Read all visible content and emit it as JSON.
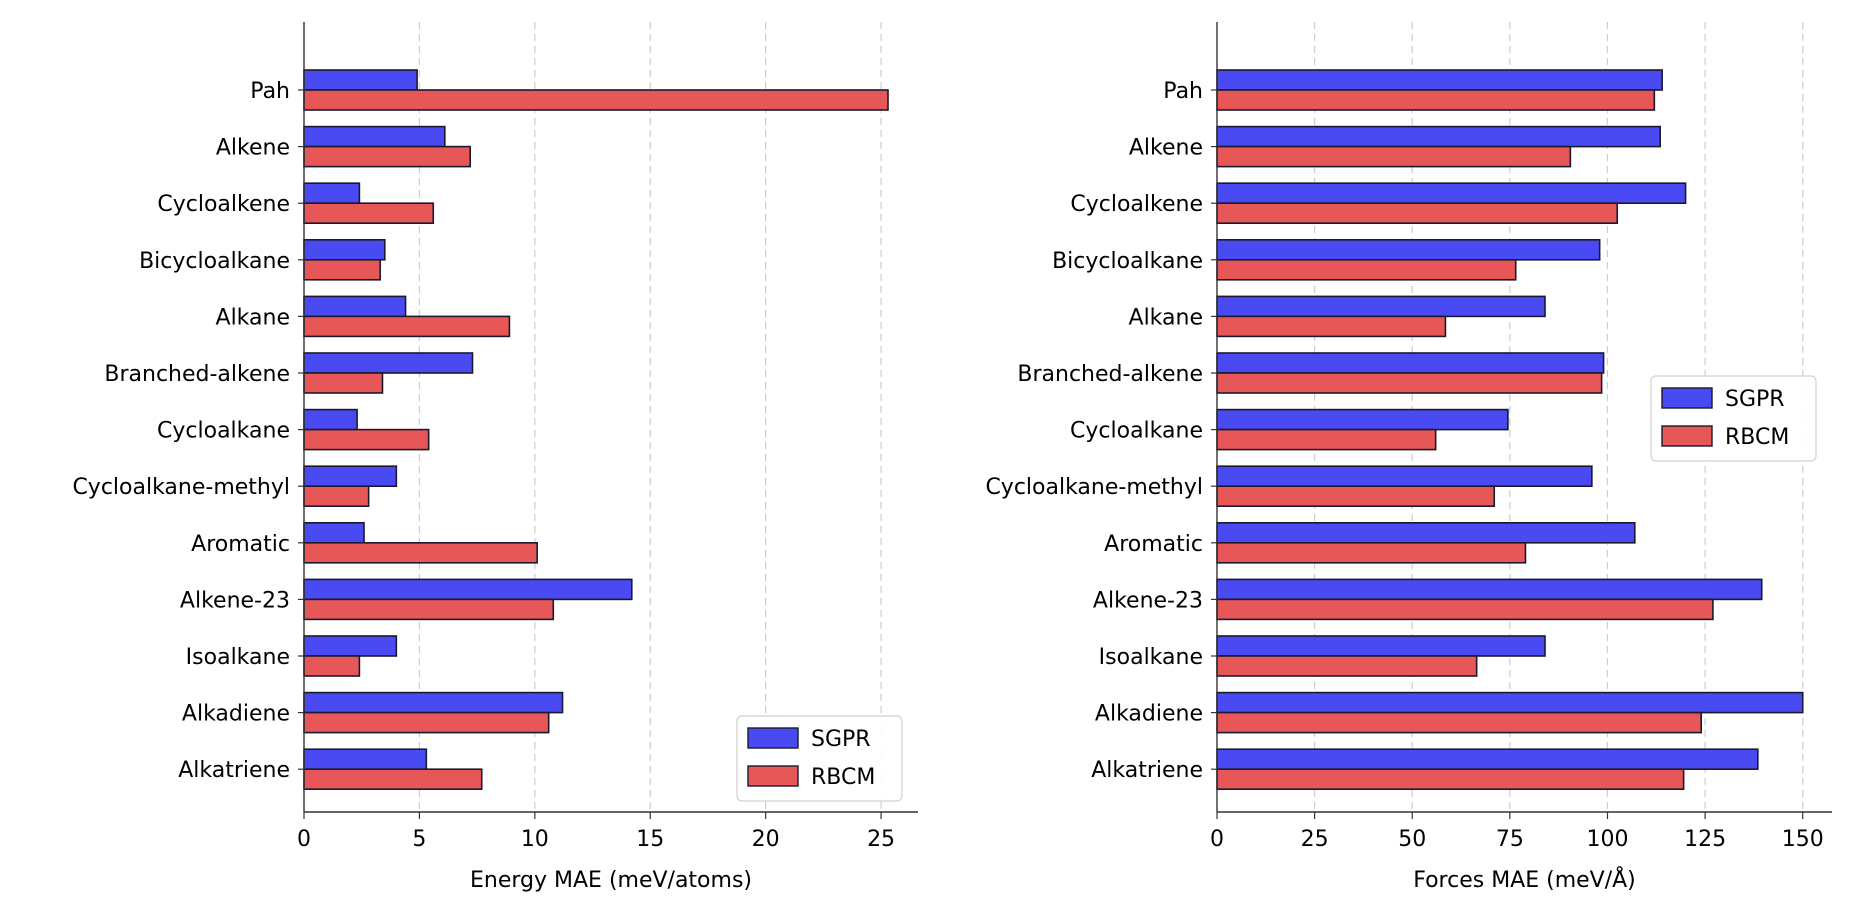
{
  "chart_data": [
    {
      "type": "bar",
      "orientation": "horizontal",
      "categories": [
        "Pah",
        "Alkene",
        "Cycloalkene",
        "Bicycloalkane",
        "Alkane",
        "Branched-alkene",
        "Cycloalkane",
        "Cycloalkane-methyl",
        "Aromatic",
        "Alkene-23",
        "Isoalkane",
        "Alkadiene",
        "Alkatriene"
      ],
      "series": [
        {
          "name": "SGPR",
          "color": "#4a4af2",
          "values": [
            4.9,
            6.1,
            2.4,
            3.5,
            4.4,
            7.3,
            2.3,
            4.0,
            2.6,
            14.2,
            4.0,
            11.2,
            5.3
          ]
        },
        {
          "name": "RBCM",
          "color": "#e85757",
          "values": [
            25.3,
            7.2,
            5.6,
            3.3,
            8.9,
            3.4,
            5.4,
            2.8,
            10.1,
            10.8,
            2.4,
            10.6,
            7.7
          ]
        }
      ],
      "xlabel": "Energy MAE (meV/atoms)",
      "xlim": [
        0,
        26.6
      ],
      "xticks": [
        0,
        5,
        10,
        15,
        20,
        25
      ],
      "grid": "x-dashed",
      "legend_position": "lower-right"
    },
    {
      "type": "bar",
      "orientation": "horizontal",
      "categories": [
        "Pah",
        "Alkene",
        "Cycloalkene",
        "Bicycloalkane",
        "Alkane",
        "Branched-alkene",
        "Cycloalkane",
        "Cycloalkane-methyl",
        "Aromatic",
        "Alkene-23",
        "Isoalkane",
        "Alkadiene",
        "Alkatriene"
      ],
      "series": [
        {
          "name": "SGPR",
          "color": "#4a4af2",
          "values": [
            114,
            113.5,
            120,
            98,
            84,
            99,
            74.5,
            96,
            107,
            139.5,
            84,
            150,
            138.5
          ]
        },
        {
          "name": "RBCM",
          "color": "#e85757",
          "values": [
            112,
            90.5,
            102.5,
            76.5,
            58.5,
            98.5,
            56,
            71,
            79,
            127,
            66.5,
            124,
            119.5
          ]
        }
      ],
      "xlabel": "Forces MAE (meV/Å)",
      "xlim": [
        0,
        157.5
      ],
      "xticks": [
        0,
        25,
        50,
        75,
        100,
        125,
        150
      ],
      "grid": "x-dashed",
      "legend_position": "center-right"
    }
  ]
}
